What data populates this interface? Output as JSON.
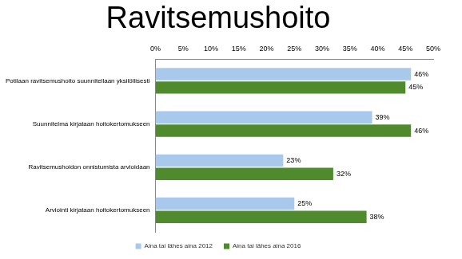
{
  "chart_data": {
    "type": "bar",
    "orientation": "horizontal",
    "title": "Ravitsemushoito",
    "categories": [
      "Potilaan ravitsemushoito suunnitellaan yksilöllisesti",
      "Suunnitelma kirjataan hoitokertomukseen",
      "Ravitsemushoidon onnistumista arvioidaan",
      "Arviointi kirjataan hoitokertomukseen"
    ],
    "series": [
      {
        "name": "Aina tai lähes aina 2012",
        "color": "#a9c9ec",
        "values": [
          46,
          39,
          23,
          25
        ],
        "value_labels": [
          "46%",
          "39%",
          "23%",
          "25%"
        ]
      },
      {
        "name": "Aina tai lähes aina 2016",
        "color": "#4f8a2c",
        "values": [
          45,
          46,
          32,
          38
        ],
        "value_labels": [
          "45%",
          "46%",
          "32%",
          "38%"
        ]
      }
    ],
    "xlim": [
      0,
      50
    ],
    "xticks": [
      {
        "value": 0,
        "label": "0%"
      },
      {
        "value": 5,
        "label": "5%"
      },
      {
        "value": 10,
        "label": "10%"
      },
      {
        "value": 15,
        "label": "15%"
      },
      {
        "value": 20,
        "label": "20%"
      },
      {
        "value": 25,
        "label": "25%"
      },
      {
        "value": 30,
        "label": "30%"
      },
      {
        "value": 35,
        "label": "35%"
      },
      {
        "value": 40,
        "label": "40%"
      },
      {
        "value": 45,
        "label": "45%"
      },
      {
        "value": 50,
        "label": "50%"
      }
    ],
    "grid": false,
    "legend": "bottom",
    "data_labels": true
  }
}
